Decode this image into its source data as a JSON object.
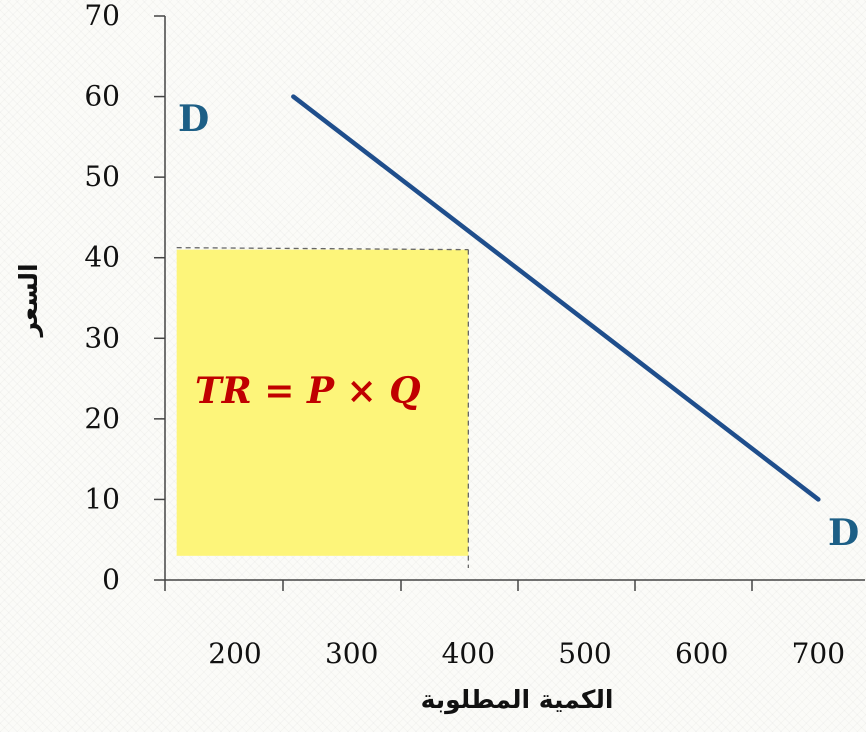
{
  "chart_data": {
    "type": "line",
    "xlabel": "الكمية المطلوبة",
    "ylabel": "السعر",
    "x_ticks": [
      "200",
      "300",
      "400",
      "500",
      "600",
      "700"
    ],
    "y_ticks": [
      "0",
      "10",
      "20",
      "30",
      "40",
      "50",
      "60",
      "70"
    ],
    "xlim": [
      140,
      740
    ],
    "ylim": [
      0,
      70
    ],
    "grid": false,
    "series": [
      {
        "name": "D",
        "color": "#1f4e8c",
        "x": [
          250,
          700
        ],
        "y": [
          60,
          10
        ]
      }
    ],
    "curve_labels": {
      "start": "D",
      "end": "D"
    },
    "highlight": {
      "x_from": 150,
      "x_to": 400,
      "y_from": 3,
      "y_to": 41,
      "color": "#fdf57a"
    },
    "reference_point": {
      "x": 400,
      "y": 41
    },
    "annotation": "TR = P × Q"
  }
}
